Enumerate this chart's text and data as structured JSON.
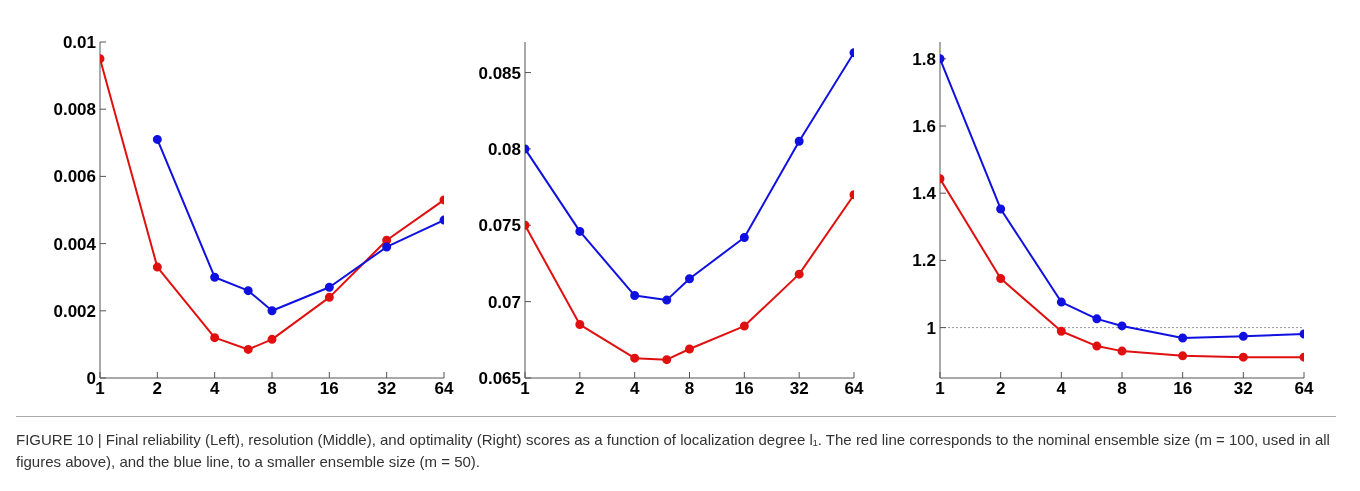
{
  "chart_data": [
    {
      "type": "line",
      "x": [
        1,
        2,
        4,
        6,
        8,
        16,
        32,
        64
      ],
      "log": "x",
      "xlim": [
        1,
        64
      ],
      "xticks": [
        1,
        2,
        4,
        8,
        16,
        32,
        64
      ],
      "ylim": [
        0,
        0.01
      ],
      "yticks": [
        0,
        0.002,
        0.004,
        0.006,
        0.008,
        0.01
      ],
      "marker": "circle",
      "line_style": "solid",
      "series": [
        {
          "color": "#e01010",
          "values": [
            0.0095,
            0.0033,
            0.0012,
            0.00085,
            0.00115,
            0.0024,
            0.0041,
            0.0053
          ]
        },
        {
          "color": "#1010e0",
          "values": [
            null,
            0.0071,
            0.003,
            0.0026,
            0.002,
            0.0027,
            0.0039,
            0.0047
          ]
        }
      ],
      "annotations": [
        "FIGURE 10 | Final reliability (Left), resolution (Middle), and optimality (Right) scores as a function of localization degree l₁. The red line corresponds to the nominal ensemble size (m = 100, used in all figures above), and the blue line, to a smaller ensemble size (m = 50)."
      ]
    },
    {
      "type": "line",
      "x": [
        1,
        2,
        4,
        6,
        8,
        16,
        32,
        64
      ],
      "log": "x",
      "xlim": [
        1,
        64
      ],
      "xticks": [
        1,
        2,
        4,
        8,
        16,
        32,
        64
      ],
      "ylim": [
        0.065,
        0.087
      ],
      "yticks": [
        0.065,
        0.07,
        0.075,
        0.08,
        0.085
      ],
      "marker": "circle",
      "line_style": "solid",
      "series": [
        {
          "color": "#e01010",
          "values": [
            0.075,
            0.0685,
            0.0663,
            0.0662,
            0.0669,
            0.0684,
            0.0718,
            0.077
          ]
        },
        {
          "color": "#1010e0",
          "values": [
            0.08,
            0.0746,
            0.0704,
            0.0701,
            0.0715,
            0.0742,
            0.0805,
            0.0863
          ]
        }
      ]
    },
    {
      "type": "line",
      "x": [
        1,
        2,
        4,
        6,
        8,
        16,
        32,
        64
      ],
      "log": "x",
      "xlim": [
        1,
        64
      ],
      "xticks": [
        1,
        2,
        4,
        8,
        16,
        32,
        64
      ],
      "ylim": [
        0.85,
        1.85
      ],
      "yticks": [
        1,
        1.2,
        1.4,
        1.6,
        1.8
      ],
      "marker": "circle",
      "line_style": "solid",
      "series": [
        {
          "color": "#e01010",
          "values": [
            1.443,
            1.146,
            0.989,
            0.945,
            0.93,
            0.916,
            0.912,
            0.912
          ]
        },
        {
          "color": "#1010e0",
          "values": [
            1.8,
            1.353,
            1.076,
            1.026,
            1.005,
            0.969,
            0.974,
            0.981
          ]
        }
      ],
      "ref_lines": [
        {
          "axis": "y",
          "value": 1,
          "color": "#999999",
          "line_style": "dotted"
        }
      ]
    }
  ]
}
